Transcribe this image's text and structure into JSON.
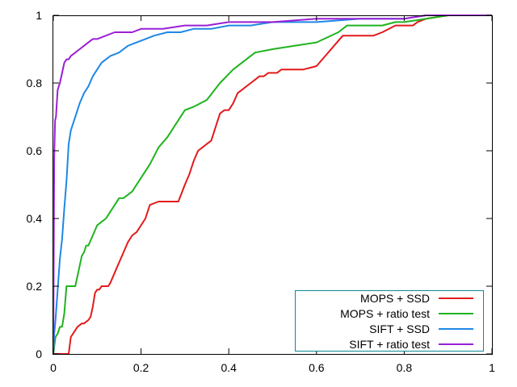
{
  "chart_data": {
    "type": "line",
    "title": "",
    "xlabel": "",
    "ylabel": "",
    "xlim": [
      0,
      1
    ],
    "ylim": [
      0,
      1
    ],
    "xticks": [
      0,
      0.2,
      0.4,
      0.6,
      0.8,
      1
    ],
    "yticks": [
      0,
      0.2,
      0.4,
      0.6,
      0.8,
      1
    ],
    "xtick_labels": [
      "0",
      "0.2",
      "0.4",
      "0.6",
      "0.8",
      "1"
    ],
    "ytick_labels": [
      "0",
      "0.2",
      "0.4",
      "0.6",
      "0.8",
      "1"
    ],
    "grid": false,
    "legend_position": "bottom-right",
    "series": [
      {
        "name": "MOPS + SSD",
        "color": "#e31a1c",
        "x": [
          0,
          0.035,
          0.04,
          0.05,
          0.055,
          0.065,
          0.07,
          0.08,
          0.085,
          0.09,
          0.095,
          0.1,
          0.105,
          0.11,
          0.115,
          0.125,
          0.13,
          0.14,
          0.15,
          0.16,
          0.17,
          0.18,
          0.19,
          0.2,
          0.21,
          0.22,
          0.24,
          0.26,
          0.285,
          0.3,
          0.31,
          0.32,
          0.33,
          0.34,
          0.35,
          0.36,
          0.37,
          0.38,
          0.39,
          0.4,
          0.41,
          0.42,
          0.43,
          0.44,
          0.45,
          0.46,
          0.47,
          0.48,
          0.49,
          0.5,
          0.51,
          0.52,
          0.53,
          0.54,
          0.55,
          0.57,
          0.6,
          0.62,
          0.64,
          0.66,
          0.68,
          0.7,
          0.73,
          0.75,
          0.78,
          0.8,
          0.82,
          0.83,
          0.85,
          0.9,
          1
        ],
        "y": [
          0,
          0,
          0.05,
          0.07,
          0.08,
          0.09,
          0.09,
          0.1,
          0.11,
          0.14,
          0.18,
          0.19,
          0.19,
          0.2,
          0.2,
          0.2,
          0.21,
          0.24,
          0.27,
          0.3,
          0.33,
          0.35,
          0.36,
          0.38,
          0.4,
          0.44,
          0.45,
          0.45,
          0.45,
          0.5,
          0.53,
          0.57,
          0.6,
          0.61,
          0.62,
          0.63,
          0.67,
          0.71,
          0.72,
          0.72,
          0.74,
          0.77,
          0.78,
          0.79,
          0.8,
          0.81,
          0.82,
          0.82,
          0.83,
          0.83,
          0.83,
          0.84,
          0.84,
          0.84,
          0.84,
          0.84,
          0.85,
          0.88,
          0.91,
          0.94,
          0.94,
          0.94,
          0.94,
          0.95,
          0.97,
          0.97,
          0.97,
          0.98,
          0.99,
          1,
          1
        ]
      },
      {
        "name": "MOPS + ratio test",
        "color": "#1fb31f",
        "x": [
          0,
          0.005,
          0.01,
          0.015,
          0.02,
          0.025,
          0.03,
          0.035,
          0.04,
          0.045,
          0.05,
          0.055,
          0.06,
          0.065,
          0.07,
          0.075,
          0.08,
          0.09,
          0.1,
          0.11,
          0.12,
          0.13,
          0.14,
          0.15,
          0.16,
          0.18,
          0.2,
          0.22,
          0.24,
          0.26,
          0.28,
          0.3,
          0.32,
          0.35,
          0.38,
          0.41,
          0.43,
          0.46,
          0.5,
          0.55,
          0.6,
          0.65,
          0.67,
          0.7,
          0.75,
          0.78,
          0.8,
          0.85,
          0.9,
          1
        ],
        "y": [
          0,
          0.05,
          0.06,
          0.08,
          0.08,
          0.12,
          0.2,
          0.2,
          0.2,
          0.2,
          0.2,
          0.23,
          0.26,
          0.29,
          0.3,
          0.32,
          0.32,
          0.35,
          0.38,
          0.39,
          0.4,
          0.42,
          0.44,
          0.46,
          0.46,
          0.48,
          0.52,
          0.56,
          0.61,
          0.64,
          0.68,
          0.72,
          0.73,
          0.75,
          0.8,
          0.84,
          0.86,
          0.89,
          0.9,
          0.91,
          0.92,
          0.95,
          0.97,
          0.97,
          0.97,
          0.98,
          0.98,
          0.99,
          1,
          1
        ]
      },
      {
        "name": "SIFT + SSD",
        "color": "#1e88e5",
        "x": [
          0,
          0.002,
          0.005,
          0.01,
          0.015,
          0.02,
          0.025,
          0.03,
          0.035,
          0.04,
          0.045,
          0.05,
          0.055,
          0.06,
          0.07,
          0.08,
          0.09,
          0.1,
          0.11,
          0.12,
          0.13,
          0.15,
          0.17,
          0.19,
          0.21,
          0.23,
          0.26,
          0.29,
          0.32,
          0.36,
          0.4,
          0.45,
          0.5,
          0.6,
          0.7,
          0.8,
          0.85,
          0.9,
          1
        ],
        "y": [
          0,
          0.06,
          0.1,
          0.19,
          0.28,
          0.34,
          0.43,
          0.51,
          0.62,
          0.66,
          0.68,
          0.7,
          0.72,
          0.74,
          0.77,
          0.79,
          0.82,
          0.84,
          0.86,
          0.87,
          0.88,
          0.89,
          0.91,
          0.92,
          0.93,
          0.94,
          0.95,
          0.95,
          0.96,
          0.96,
          0.97,
          0.97,
          0.98,
          0.98,
          0.99,
          0.99,
          1,
          1,
          1
        ]
      },
      {
        "name": "SIFT + ratio test",
        "color": "#9b1fd6",
        "x": [
          0,
          0.002,
          0.004,
          0.006,
          0.008,
          0.01,
          0.015,
          0.02,
          0.025,
          0.03,
          0.035,
          0.04,
          0.05,
          0.06,
          0.07,
          0.08,
          0.09,
          0.1,
          0.12,
          0.14,
          0.16,
          0.18,
          0.2,
          0.25,
          0.3,
          0.35,
          0.4,
          0.5,
          0.6,
          0.7,
          0.8,
          0.85,
          0.9,
          1
        ],
        "y": [
          0,
          0.58,
          0.69,
          0.7,
          0.74,
          0.78,
          0.8,
          0.83,
          0.86,
          0.87,
          0.87,
          0.88,
          0.89,
          0.9,
          0.91,
          0.92,
          0.93,
          0.93,
          0.94,
          0.95,
          0.95,
          0.95,
          0.96,
          0.96,
          0.97,
          0.97,
          0.98,
          0.98,
          0.99,
          0.99,
          0.99,
          1,
          1,
          1
        ]
      }
    ]
  }
}
